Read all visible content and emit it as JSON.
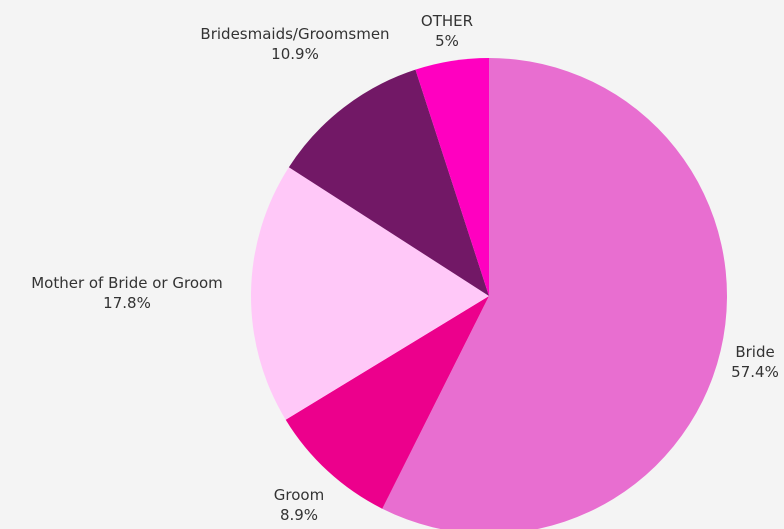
{
  "chart_data": {
    "type": "pie",
    "title": "",
    "start_angle_deg": 0,
    "direction": "clockwise",
    "legend": "none",
    "slices": [
      {
        "label": "Bride",
        "value": 57.4,
        "value_label": "57.4%",
        "color": "#e86ed0"
      },
      {
        "label": "Groom",
        "value": 8.9,
        "value_label": "8.9%",
        "color": "#ec008c"
      },
      {
        "label": "Mother of Bride or Groom",
        "value": 17.8,
        "value_label": "17.8%",
        "color": "#ffc8f8"
      },
      {
        "label": "Bridesmaids/Groomsmen",
        "value": 10.9,
        "value_label": "10.9%",
        "color": "#721866"
      },
      {
        "label": "OTHER",
        "value": 5,
        "value_label": "5%",
        "color": "#ff00c0"
      }
    ]
  }
}
